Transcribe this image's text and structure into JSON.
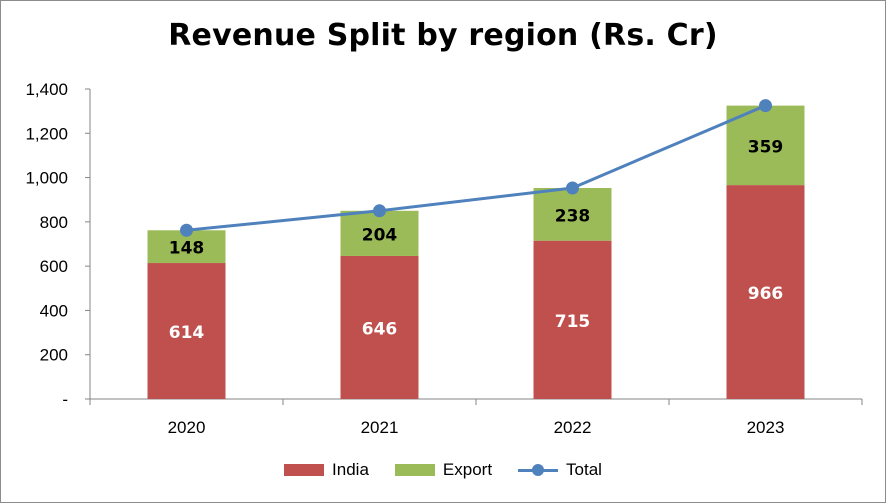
{
  "colors": {
    "india": "#c0504d",
    "export": "#9bbb59",
    "total": "#4f81bd",
    "axis": "#868686"
  },
  "chart_data": {
    "type": "bar",
    "stacked": true,
    "title": "Revenue Split by region (Rs. Cr)",
    "categories": [
      "2020",
      "2021",
      "2022",
      "2023"
    ],
    "series": [
      {
        "name": "India",
        "type": "bar",
        "values": [
          614,
          646,
          715,
          966
        ]
      },
      {
        "name": "Export",
        "type": "bar",
        "values": [
          148,
          204,
          238,
          359
        ]
      },
      {
        "name": "Total",
        "type": "line",
        "values": [
          762,
          850,
          953,
          1325
        ]
      }
    ],
    "ylim": [
      0,
      1400
    ],
    "yticks": [
      0,
      200,
      400,
      600,
      800,
      1000,
      1200,
      1400
    ],
    "ytick_labels": [
      "-",
      "200",
      "400",
      "600",
      "800",
      "1,000",
      "1,200",
      "1,400"
    ],
    "xlabel": "",
    "ylabel": "",
    "grid": false,
    "legend": "bottom"
  }
}
